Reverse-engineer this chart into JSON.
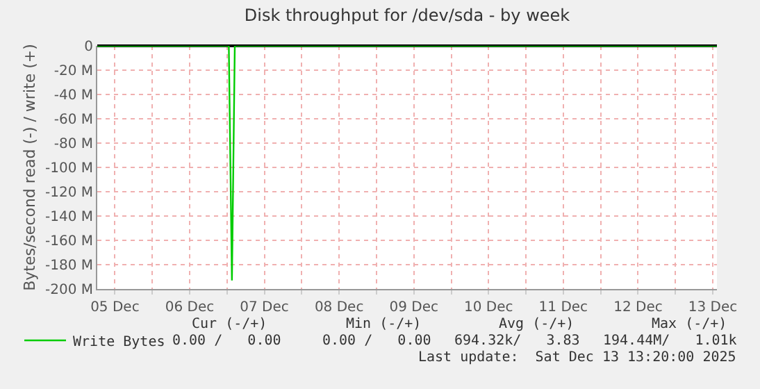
{
  "chart_data": {
    "type": "line",
    "title": "Disk throughput for /dev/sda - by week",
    "ylabel": "Bytes/second read (-) / write (+)",
    "x": [
      "2025-12-05T06:20",
      "2025-12-07T00:35",
      "2025-12-07T01:35",
      "2025-12-07T02:30",
      "2025-12-13T13:20"
    ],
    "series": [
      {
        "name": "Write Bytes",
        "color": "#00cc00",
        "values": [
          0,
          0,
          -193000000,
          0,
          0
        ]
      }
    ],
    "xlim": [
      "2025-12-05T06:20",
      "2025-12-13T13:20"
    ],
    "xticks": [
      {
        "value": "2025-12-05T12:00",
        "label": "05 Dec"
      },
      {
        "value": "2025-12-06T00:00",
        "label": null
      },
      {
        "value": "2025-12-06T12:00",
        "label": "06 Dec"
      },
      {
        "value": "2025-12-07T00:00",
        "label": null
      },
      {
        "value": "2025-12-07T12:00",
        "label": "07 Dec"
      },
      {
        "value": "2025-12-08T00:00",
        "label": null
      },
      {
        "value": "2025-12-08T12:00",
        "label": "08 Dec"
      },
      {
        "value": "2025-12-09T00:00",
        "label": null
      },
      {
        "value": "2025-12-09T12:00",
        "label": "09 Dec"
      },
      {
        "value": "2025-12-10T00:00",
        "label": null
      },
      {
        "value": "2025-12-10T12:00",
        "label": "10 Dec"
      },
      {
        "value": "2025-12-11T00:00",
        "label": null
      },
      {
        "value": "2025-12-11T12:00",
        "label": "11 Dec"
      },
      {
        "value": "2025-12-12T00:00",
        "label": null
      },
      {
        "value": "2025-12-12T12:00",
        "label": "12 Dec"
      },
      {
        "value": "2025-12-13T00:00",
        "label": null
      },
      {
        "value": "2025-12-13T12:00",
        "label": "13 Dec"
      }
    ],
    "ylim": [
      -200000000,
      0
    ],
    "yticks": [
      {
        "value": -200000000,
        "label": "-200 M"
      },
      {
        "value": -180000000,
        "label": "-180 M"
      },
      {
        "value": -160000000,
        "label": "-160 M"
      },
      {
        "value": -140000000,
        "label": "-140 M"
      },
      {
        "value": -120000000,
        "label": "-120 M"
      },
      {
        "value": -100000000,
        "label": "-100 M"
      },
      {
        "value": -80000000,
        "label": "-80 M"
      },
      {
        "value": -60000000,
        "label": "-60 M"
      },
      {
        "value": -40000000,
        "label": "-40 M"
      },
      {
        "value": -20000000,
        "label": "-20 M"
      },
      {
        "value": 0,
        "label": "0"
      }
    ],
    "grid": true,
    "legend": "bottom left",
    "marker": "none",
    "line_style": "solid",
    "annotations": [
      "Cur (-/+)",
      "Min (-/+)",
      "Avg (-/+)",
      "Max (-/+)",
      "0.00 /   0.00",
      "0.00 /   0.00",
      "694.32k/   3.83",
      "194.44M/   1.01k",
      "Last update:  Sat Dec 13 13:20:00 2025"
    ]
  }
}
